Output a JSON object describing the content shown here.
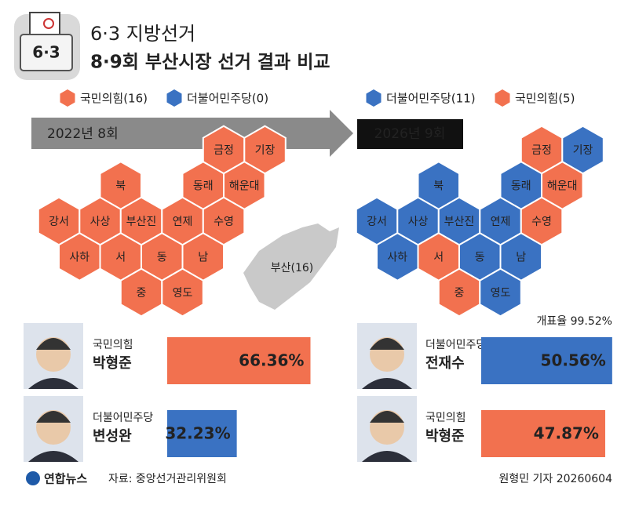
{
  "header": {
    "icon_label": "6·3",
    "subtitle": "6·3 지방선거",
    "title": "8·9회 부산시장 선거 결과 비교"
  },
  "map_label": "부산(16)",
  "turnout": "개표율 99.52%",
  "panels": [
    {
      "label": "2022년 8회",
      "legend": [
        {
          "name": "국민의힘(16)",
          "color": "#f2714f"
        },
        {
          "name": "더불어민주당(0)",
          "color": "#3a72c2"
        }
      ],
      "districts": [
        {
          "name": "금정",
          "color": "#f2714f"
        },
        {
          "name": "기장",
          "color": "#f2714f"
        },
        {
          "name": "북",
          "color": "#f2714f"
        },
        {
          "name": "동래",
          "color": "#f2714f"
        },
        {
          "name": "해운대",
          "color": "#f2714f"
        },
        {
          "name": "강서",
          "color": "#f2714f"
        },
        {
          "name": "사상",
          "color": "#f2714f"
        },
        {
          "name": "부산진",
          "color": "#f2714f"
        },
        {
          "name": "연제",
          "color": "#f2714f"
        },
        {
          "name": "수영",
          "color": "#f2714f"
        },
        {
          "name": "사하",
          "color": "#f2714f"
        },
        {
          "name": "서",
          "color": "#f2714f"
        },
        {
          "name": "동",
          "color": "#f2714f"
        },
        {
          "name": "남",
          "color": "#f2714f"
        },
        {
          "name": "중",
          "color": "#f2714f"
        },
        {
          "name": "영도",
          "color": "#f2714f"
        }
      ],
      "candidates": [
        {
          "party": "국민의힘",
          "name": "박형준",
          "value": 66.36,
          "value_label": "66.36%",
          "color": "#f2714f"
        },
        {
          "party": "더불어민주당",
          "name": "변성완",
          "value": 32.23,
          "value_label": "32.23%",
          "color": "#3a72c2"
        }
      ]
    },
    {
      "label": "2026년 9회",
      "legend": [
        {
          "name": "더불어민주당(11)",
          "color": "#3a72c2"
        },
        {
          "name": "국민의힘(5)",
          "color": "#f2714f"
        }
      ],
      "districts": [
        {
          "name": "금정",
          "color": "#f2714f"
        },
        {
          "name": "기장",
          "color": "#3a72c2"
        },
        {
          "name": "북",
          "color": "#3a72c2"
        },
        {
          "name": "동래",
          "color": "#3a72c2"
        },
        {
          "name": "해운대",
          "color": "#f2714f"
        },
        {
          "name": "강서",
          "color": "#3a72c2"
        },
        {
          "name": "사상",
          "color": "#3a72c2"
        },
        {
          "name": "부산진",
          "color": "#3a72c2"
        },
        {
          "name": "연제",
          "color": "#3a72c2"
        },
        {
          "name": "수영",
          "color": "#f2714f"
        },
        {
          "name": "사하",
          "color": "#3a72c2"
        },
        {
          "name": "서",
          "color": "#f2714f"
        },
        {
          "name": "동",
          "color": "#3a72c2"
        },
        {
          "name": "남",
          "color": "#3a72c2"
        },
        {
          "name": "중",
          "color": "#f2714f"
        },
        {
          "name": "영도",
          "color": "#3a72c2"
        }
      ],
      "candidates": [
        {
          "party": "더불어민주당",
          "name": "전재수",
          "value": 50.56,
          "value_label": "50.56%",
          "color": "#3a72c2"
        },
        {
          "party": "국민의힘",
          "name": "박형준",
          "value": 47.87,
          "value_label": "47.87%",
          "color": "#f2714f"
        }
      ]
    }
  ],
  "footer": {
    "logo": "연합뉴스",
    "source": "자료: 중앙선거관리위원회",
    "credit": "원형민 기자 20260604"
  }
}
